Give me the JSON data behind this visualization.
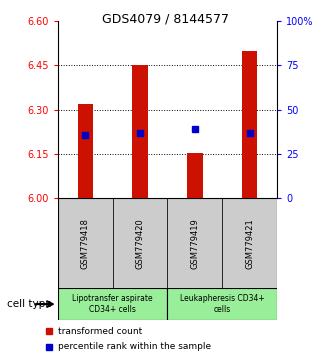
{
  "title": "GDS4079 / 8144577",
  "samples": [
    "GSM779418",
    "GSM779420",
    "GSM779419",
    "GSM779421"
  ],
  "bar_values": [
    6.32,
    6.45,
    6.155,
    6.5
  ],
  "blue_values": [
    6.215,
    6.22,
    6.235,
    6.22
  ],
  "y_min": 6.0,
  "y_max": 6.6,
  "y_ticks_left": [
    6.0,
    6.15,
    6.3,
    6.45,
    6.6
  ],
  "y_ticks_right_labels": [
    "0",
    "25",
    "50",
    "75",
    "100%"
  ],
  "y_ticks_right_vals": [
    6.0,
    6.15,
    6.3,
    6.45,
    6.6
  ],
  "bar_color": "#cc1100",
  "blue_color": "#0000cc",
  "group1_label": "Lipotransfer aspirate\nCD34+ cells",
  "group2_label": "Leukapheresis CD34+\ncells",
  "cell_type_label": "cell type",
  "legend_red": "transformed count",
  "legend_blue": "percentile rank within the sample",
  "sample_box_color": "#cccccc",
  "group_box_color": "#99ee99",
  "background_color": "#ffffff"
}
